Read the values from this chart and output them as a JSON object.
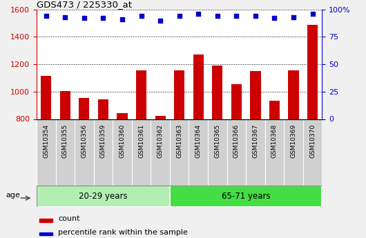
{
  "title": "GDS473 / 225330_at",
  "samples": [
    "GSM10354",
    "GSM10355",
    "GSM10356",
    "GSM10359",
    "GSM10360",
    "GSM10361",
    "GSM10362",
    "GSM10363",
    "GSM10364",
    "GSM10365",
    "GSM10366",
    "GSM10367",
    "GSM10368",
    "GSM10369",
    "GSM10370"
  ],
  "counts": [
    1115,
    1005,
    955,
    945,
    845,
    1155,
    825,
    1155,
    1270,
    1190,
    1055,
    1150,
    935,
    1155,
    1490
  ],
  "percentile_ranks": [
    94,
    93,
    92,
    92,
    91,
    94,
    90,
    94,
    96,
    94,
    94,
    94,
    92,
    93,
    96
  ],
  "groups": [
    {
      "label": "20-29 years",
      "start": 0,
      "end": 7,
      "color": "#B2EEB2"
    },
    {
      "label": "65-71 years",
      "start": 7,
      "end": 15,
      "color": "#44DD44"
    }
  ],
  "age_label": "age",
  "ylim_left": [
    800,
    1600
  ],
  "ylim_right": [
    0,
    100
  ],
  "yticks_left": [
    800,
    1000,
    1200,
    1400,
    1600
  ],
  "yticks_right": [
    0,
    25,
    50,
    75,
    100
  ],
  "bar_color": "#CC0000",
  "dot_color": "#0000CC",
  "legend_count_label": "count",
  "legend_pct_label": "percentile rank within the sample",
  "xtick_bg": "#D0D0D0",
  "fig_bg": "#F0F0F0"
}
